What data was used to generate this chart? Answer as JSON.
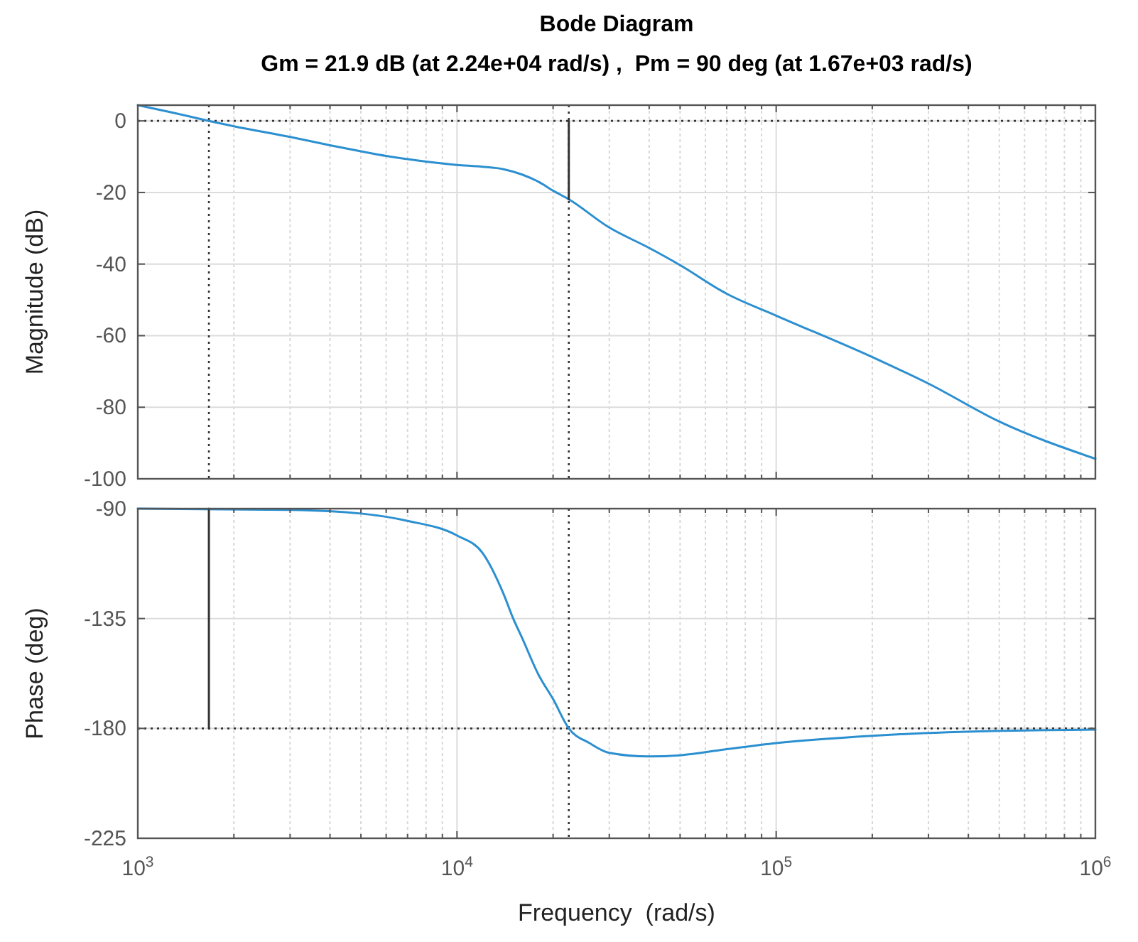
{
  "chart_data": [
    {
      "type": "line",
      "title": "Bode Diagram",
      "subtitle": "Gm = 21.9 dB (at 2.24e+04 rad/s) ,  Pm = 90 deg (at 1.67e+03 rad/s)",
      "ylabel": "Magnitude (dB)",
      "log": "x",
      "grid": true,
      "tick_labels": "y",
      "xlim": [
        1000,
        1000000
      ],
      "xticks": [
        {
          "value": 1000,
          "label": null
        },
        {
          "value": 10000,
          "label": null
        },
        {
          "value": 100000,
          "label": null
        },
        {
          "value": 1000000,
          "label": null
        }
      ],
      "ylim": [
        -100,
        4.4
      ],
      "yticks": [
        -100,
        -80,
        -60,
        -40,
        -20,
        0
      ],
      "series": [
        {
          "color": "#2b8fd0",
          "x": [
            1000,
            1300,
            1670,
            2000,
            3000,
            4000,
            5000,
            6000,
            7000,
            8000,
            10000,
            12000,
            14000,
            16000,
            18000,
            20000,
            22400,
            30000,
            40000,
            50000,
            70000,
            100000,
            200000,
            300000,
            500000,
            1000000
          ],
          "values": [
            4.4,
            2.2,
            0,
            -1.5,
            -4.5,
            -6.8,
            -8.5,
            -9.8,
            -10.7,
            -11.4,
            -12.3,
            -12.8,
            -13.5,
            -15,
            -17,
            -19.5,
            -21.9,
            -29.8,
            -35.5,
            -40.3,
            -48.3,
            -54.4,
            -66,
            -73.4,
            -84,
            -94.4
          ]
        },
        {
          "color": "#333333",
          "x": [
            22400,
            22400
          ],
          "values": [
            0,
            -21.9
          ]
        }
      ],
      "ref_lines": [
        {
          "axis": "y",
          "value": 0,
          "line_style": "dotted",
          "color": "#333333"
        },
        {
          "axis": "x",
          "value": 1670,
          "line_style": "dotted",
          "color": "#333333"
        },
        {
          "axis": "x",
          "value": 22400,
          "line_style": "dotted",
          "color": "#333333"
        }
      ]
    },
    {
      "type": "line",
      "ylabel": "Phase (deg)",
      "xlabel": "Frequency  (rad/s)",
      "log": "x",
      "grid": true,
      "xlim": [
        1000,
        1000000
      ],
      "xticks": [
        {
          "value": 1000,
          "label": "10$^{3}$"
        },
        {
          "value": 10000,
          "label": "10$^{4}$"
        },
        {
          "value": 100000,
          "label": "10$^{5}$"
        },
        {
          "value": 1000000,
          "label": "10$^{6}$"
        }
      ],
      "ylim": [
        -225,
        -90
      ],
      "yticks": [
        -225,
        -180,
        -135,
        -90
      ],
      "series": [
        {
          "color": "#2b8fd0",
          "x": [
            1000,
            3000,
            5000,
            7000,
            10000,
            12000,
            14000,
            15000,
            16000,
            18000,
            20000,
            22400,
            26000,
            30000,
            40000,
            50000,
            70000,
            100000,
            200000,
            500000,
            1000000
          ],
          "values": [
            -90,
            -90.5,
            -92,
            -95,
            -101,
            -108,
            -125,
            -135,
            -143,
            -158,
            -168,
            -180,
            -186,
            -190,
            -191.5,
            -191,
            -188.5,
            -186,
            -183,
            -181,
            -180.5
          ]
        },
        {
          "color": "#333333",
          "x": [
            1670,
            1670
          ],
          "values": [
            -90,
            -180
          ]
        }
      ],
      "ref_lines": [
        {
          "axis": "y",
          "value": -180,
          "line_style": "dotted",
          "color": "#333333"
        },
        {
          "axis": "x",
          "value": 22400,
          "line_style": "dotted",
          "color": "#333333"
        }
      ]
    }
  ]
}
